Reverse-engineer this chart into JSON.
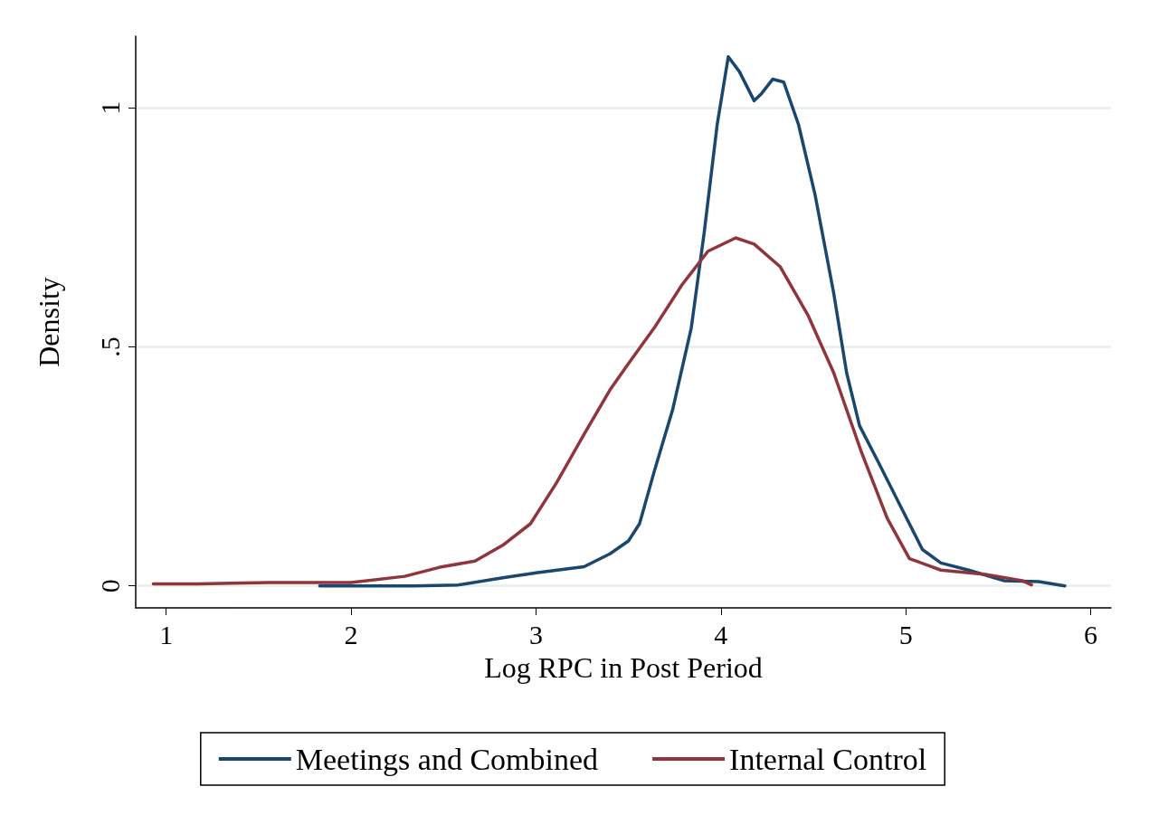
{
  "chart_data": {
    "type": "line",
    "xlabel": "Log RPC in Post Period",
    "ylabel": "Density",
    "xlim": [
      0.835,
      6.11
    ],
    "xticks": [
      1,
      2,
      3,
      4,
      5,
      6
    ],
    "ylim": [
      -0.046,
      1.15
    ],
    "yticks": [
      0,
      {
        "value": 0.5,
        "label": ".5"
      },
      1
    ],
    "grid": "y",
    "legend": "bottom",
    "marker": "none",
    "line_style": "solid",
    "series": [
      {
        "name": "Meetings and Combined",
        "color": "#1a476f",
        "x": [
          1.83,
          2.0,
          2.34,
          2.58,
          2.82,
          3.01,
          3.26,
          3.4,
          3.5,
          3.56,
          3.64,
          3.74,
          3.84,
          3.91,
          3.98,
          4.04,
          4.1,
          4.18,
          4.22,
          4.28,
          4.34,
          4.42,
          4.51,
          4.61,
          4.68,
          4.75,
          4.85,
          4.97,
          5.09,
          5.19,
          5.34,
          5.53,
          5.72,
          5.86
        ],
        "values": [
          0,
          0,
          0,
          0.002,
          0.017,
          0.028,
          0.04,
          0.067,
          0.094,
          0.13,
          0.24,
          0.37,
          0.54,
          0.74,
          0.965,
          1.107,
          1.076,
          1.015,
          1.03,
          1.06,
          1.054,
          0.965,
          0.817,
          0.613,
          0.446,
          0.335,
          0.26,
          0.168,
          0.076,
          0.048,
          0.033,
          0.011,
          0.009,
          0
        ]
      },
      {
        "name": "Internal Control",
        "color": "#90353b",
        "x": [
          0.93,
          1.17,
          1.56,
          2.0,
          2.29,
          2.48,
          2.67,
          2.82,
          2.97,
          3.11,
          3.26,
          3.4,
          3.5,
          3.64,
          3.79,
          3.93,
          4.08,
          4.18,
          4.32,
          4.47,
          4.61,
          4.76,
          4.9,
          5.02,
          5.19,
          5.43,
          5.63,
          5.68
        ],
        "values": [
          0.004,
          0.004,
          0.007,
          0.007,
          0.02,
          0.039,
          0.052,
          0.085,
          0.13,
          0.215,
          0.317,
          0.41,
          0.465,
          0.54,
          0.63,
          0.7,
          0.728,
          0.715,
          0.668,
          0.567,
          0.446,
          0.28,
          0.141,
          0.057,
          0.033,
          0.024,
          0.011,
          0.002
        ]
      }
    ]
  }
}
